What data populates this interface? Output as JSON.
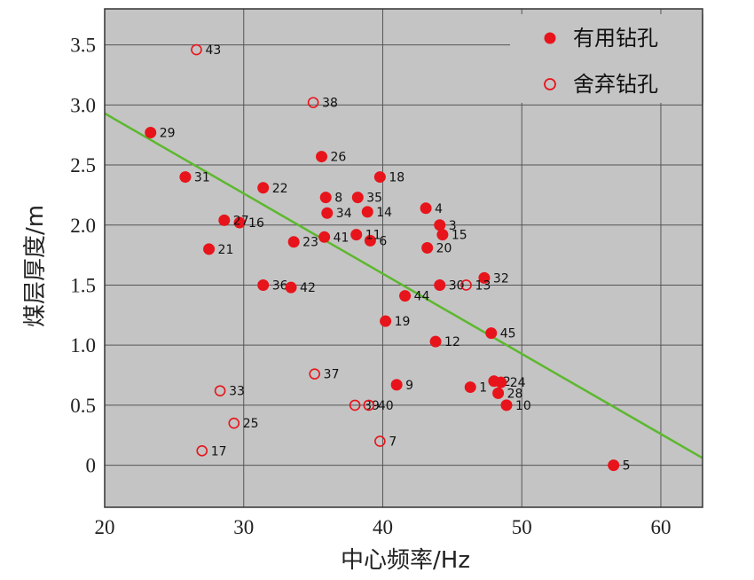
{
  "chart_data": {
    "type": "scatter",
    "xlabel": "中心频率/Hz",
    "ylabel": "煤层厚度/m",
    "xlim": [
      20,
      63
    ],
    "ylim": [
      -0.35,
      3.8
    ],
    "x_ticks": [
      "20",
      "30",
      "40",
      "50",
      "60"
    ],
    "x_tick_values": [
      20,
      30,
      40,
      50,
      60
    ],
    "y_ticks": [
      "0",
      "0.5",
      "1.0",
      "1.5",
      "2.0",
      "2.5",
      "3.0",
      "3.5"
    ],
    "y_tick_values": [
      0,
      0.5,
      1.0,
      1.5,
      2.0,
      2.5,
      3.0,
      3.5
    ],
    "grid": true,
    "background_color": "#c4c4c4",
    "grid_color": "#555555",
    "legend_position": "top-right",
    "trendline": {
      "x": [
        20,
        63
      ],
      "y": [
        2.93,
        0.06
      ],
      "color": "#5cb82e"
    },
    "series": [
      {
        "name": "有用钻孔",
        "marker": "filled-circle",
        "color": "#e8141b",
        "points": [
          {
            "label": "1",
            "x": 46.3,
            "y": 0.65
          },
          {
            "label": "2",
            "x": 48.0,
            "y": 0.7
          },
          {
            "label": "3",
            "x": 44.1,
            "y": 2.0
          },
          {
            "label": "4",
            "x": 43.1,
            "y": 2.14
          },
          {
            "label": "5",
            "x": 56.6,
            "y": 0.0
          },
          {
            "label": "6",
            "x": 39.1,
            "y": 1.87
          },
          {
            "label": "8",
            "x": 35.9,
            "y": 2.23
          },
          {
            "label": "9",
            "x": 41.0,
            "y": 0.67
          },
          {
            "label": "10",
            "x": 48.9,
            "y": 0.5
          },
          {
            "label": "11",
            "x": 38.1,
            "y": 1.92
          },
          {
            "label": "12",
            "x": 43.8,
            "y": 1.03
          },
          {
            "label": "14",
            "x": 38.9,
            "y": 2.11
          },
          {
            "label": "15",
            "x": 44.3,
            "y": 1.92
          },
          {
            "label": "16",
            "x": 29.7,
            "y": 2.02
          },
          {
            "label": "18",
            "x": 39.8,
            "y": 2.4
          },
          {
            "label": "19",
            "x": 40.2,
            "y": 1.2
          },
          {
            "label": "20",
            "x": 43.2,
            "y": 1.81
          },
          {
            "label": "21",
            "x": 27.5,
            "y": 1.8
          },
          {
            "label": "22",
            "x": 31.4,
            "y": 2.31
          },
          {
            "label": "23",
            "x": 33.6,
            "y": 1.86
          },
          {
            "label": "24",
            "x": 48.5,
            "y": 0.69
          },
          {
            "label": "26",
            "x": 35.6,
            "y": 2.57
          },
          {
            "label": "27",
            "x": 28.6,
            "y": 2.04
          },
          {
            "label": "28",
            "x": 48.3,
            "y": 0.6
          },
          {
            "label": "29",
            "x": 23.3,
            "y": 2.77
          },
          {
            "label": "30",
            "x": 44.1,
            "y": 1.5
          },
          {
            "label": "31",
            "x": 25.8,
            "y": 2.4
          },
          {
            "label": "32",
            "x": 47.3,
            "y": 1.56
          },
          {
            "label": "34",
            "x": 36.0,
            "y": 2.1
          },
          {
            "label": "35",
            "x": 38.2,
            "y": 2.23
          },
          {
            "label": "36",
            "x": 31.4,
            "y": 1.5
          },
          {
            "label": "41",
            "x": 35.8,
            "y": 1.9
          },
          {
            "label": "42",
            "x": 33.4,
            "y": 1.48
          },
          {
            "label": "44",
            "x": 41.6,
            "y": 1.41
          },
          {
            "label": "45",
            "x": 47.8,
            "y": 1.1
          }
        ]
      },
      {
        "name": "舍弃钻孔",
        "marker": "open-circle",
        "color": "#e8141b",
        "points": [
          {
            "label": "7",
            "x": 39.8,
            "y": 0.2
          },
          {
            "label": "13",
            "x": 46.0,
            "y": 1.5
          },
          {
            "label": "17",
            "x": 27.0,
            "y": 0.12
          },
          {
            "label": "25",
            "x": 29.3,
            "y": 0.35
          },
          {
            "label": "33",
            "x": 28.3,
            "y": 0.62
          },
          {
            "label": "37",
            "x": 35.1,
            "y": 0.76
          },
          {
            "label": "38",
            "x": 35.0,
            "y": 3.02
          },
          {
            "label": "39",
            "x": 38.0,
            "y": 0.5
          },
          {
            "label": "40",
            "x": 39.0,
            "y": 0.5
          },
          {
            "label": "43",
            "x": 26.6,
            "y": 3.46
          }
        ]
      }
    ]
  }
}
